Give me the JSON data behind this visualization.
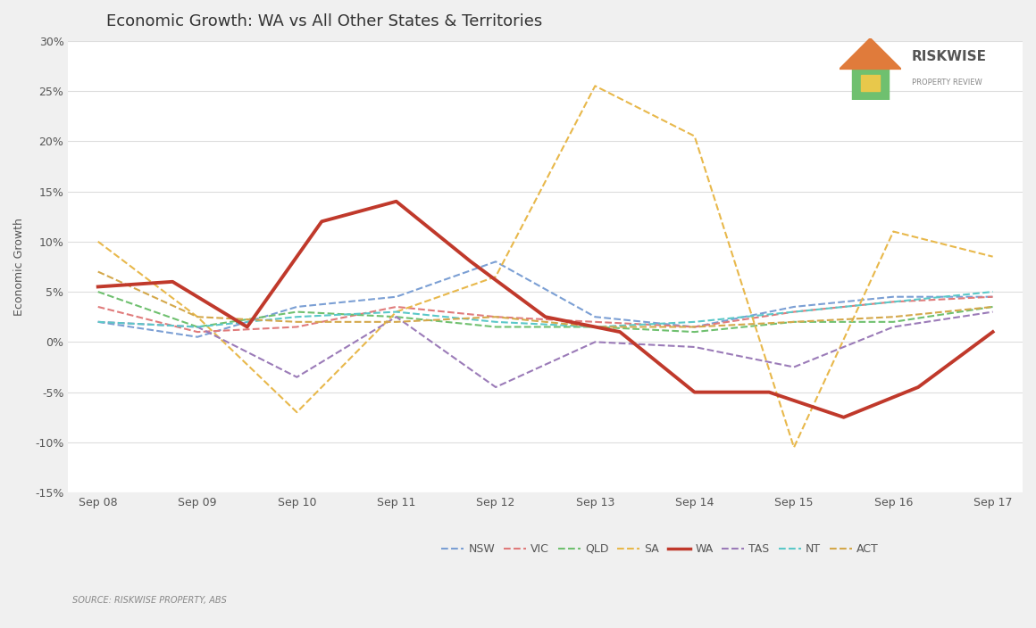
{
  "title": "Economic Growth: WA vs All Other States & Territories",
  "ylabel": "Economic Growth",
  "source_text": "SOURCE: RISKWISE PROPERTY, ABS",
  "background_color": "#f0f0f0",
  "plot_bg_color": "#ffffff",
  "x_labels": [
    "Sep 08",
    "Sep 09",
    "Sep 10",
    "Sep 11",
    "Sep 12",
    "Sep 13",
    "Sep 14",
    "Sep 15",
    "Sep 16",
    "Sep 17"
  ],
  "ylim": [
    -15,
    30
  ],
  "yticks": [
    -15,
    -10,
    -5,
    0,
    5,
    10,
    15,
    20,
    25,
    30
  ],
  "ytick_labels": [
    "-15%",
    "-10%",
    "-5%",
    "0%",
    "5%",
    "10%",
    "15%",
    "20%",
    "25%",
    "30%"
  ],
  "series": {
    "NSW": {
      "color": "#7b9fd4",
      "style": "--",
      "linewidth": 1.2,
      "values": [
        2.0,
        0.5,
        3.5,
        4.5,
        8.0,
        2.5,
        1.5,
        3.5,
        4.5,
        4.5
      ]
    },
    "VIC": {
      "color": "#e07b7b",
      "style": "--",
      "linewidth": 1.2,
      "values": [
        3.5,
        1.0,
        1.5,
        3.5,
        2.5,
        2.0,
        1.5,
        3.0,
        4.0,
        4.5
      ]
    },
    "QLD": {
      "color": "#6fc06f",
      "style": "--",
      "linewidth": 1.2,
      "values": [
        5.0,
        1.5,
        3.0,
        2.5,
        1.5,
        1.5,
        1.0,
        2.0,
        2.0,
        3.5
      ]
    },
    "SA": {
      "color": "#e8b84b",
      "style": "--",
      "linewidth": 1.2,
      "values": [
        10.0,
        2.5,
        -7.0,
        3.0,
        6.5,
        25.5,
        20.5,
        -10.5,
        11.0,
        8.5
      ]
    },
    "WA": {
      "color": "#c0392b",
      "style": "-",
      "linewidth": 2.5,
      "values": [
        5.5,
        6.0,
        1.5,
        12.0,
        14.0,
        8.0,
        2.5,
        1.0,
        -5.0,
        -5.0,
        -7.5,
        -4.5,
        1.0
      ]
    },
    "TAS": {
      "color": "#9b7bb8",
      "style": "--",
      "linewidth": 1.2,
      "values": [
        2.0,
        1.5,
        -3.5,
        2.5,
        -4.5,
        0.0,
        -0.5,
        -2.5,
        1.5,
        3.0
      ]
    },
    "NT": {
      "color": "#5bc8c8",
      "style": "--",
      "linewidth": 1.2,
      "values": [
        2.0,
        1.5,
        2.5,
        3.0,
        2.0,
        1.5,
        2.0,
        3.0,
        4.0,
        5.0
      ]
    },
    "ACT": {
      "color": "#d4a84b",
      "style": "--",
      "linewidth": 1.2,
      "values": [
        7.0,
        2.5,
        2.0,
        2.0,
        2.5,
        1.5,
        1.5,
        2.0,
        2.5,
        3.5
      ]
    }
  },
  "wa_x_indices": [
    0,
    1,
    2,
    3,
    4,
    5,
    6,
    7,
    8,
    8.5,
    9,
    9.5,
    10
  ],
  "n_points": 10
}
